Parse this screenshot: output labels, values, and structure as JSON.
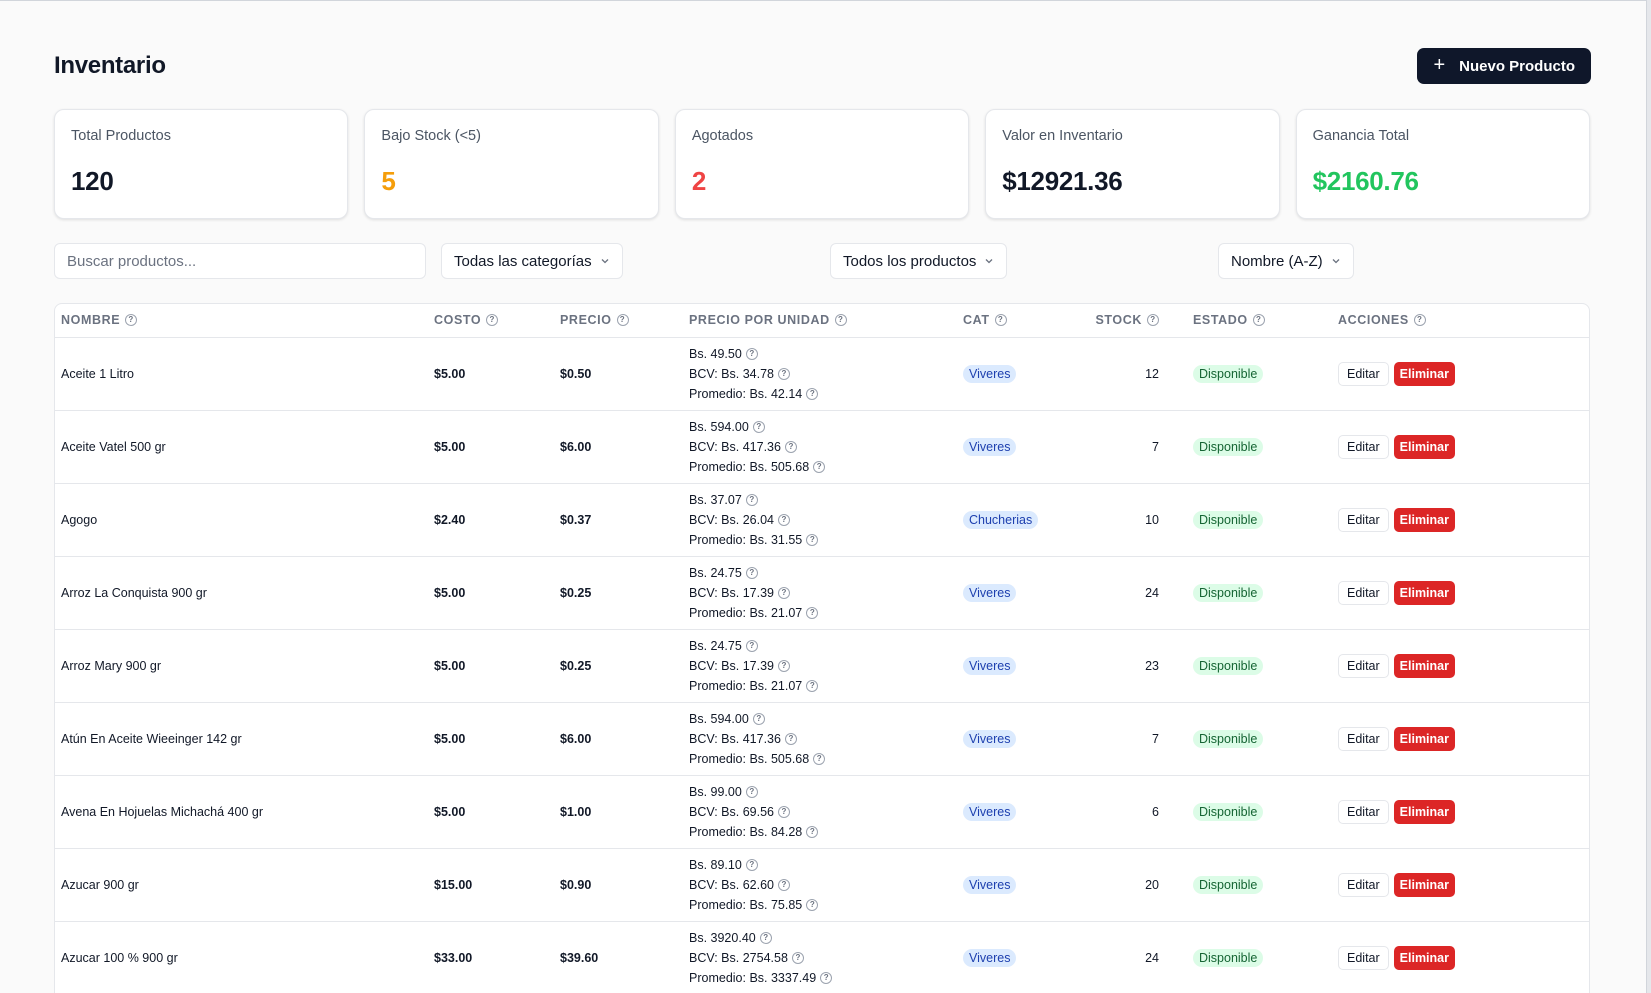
{
  "header": {
    "title": "Inventario",
    "new_button_label": "Nuevo Producto",
    "new_button_icon": "plus-icon"
  },
  "stats": [
    {
      "label": "Total Productos",
      "value": "120",
      "color": "#111827"
    },
    {
      "label": "Bajo Stock (<5)",
      "value": "5",
      "color": "#f59e0b"
    },
    {
      "label": "Agotados",
      "value": "2",
      "color": "#ef4444"
    },
    {
      "label": "Valor en Inventario",
      "value": "$12921.36",
      "color": "#111827"
    },
    {
      "label": "Ganancia Total",
      "value": "$2160.76",
      "color": "#22c55e"
    }
  ],
  "filters": {
    "search_placeholder": "Buscar productos...",
    "category_select": "Todas las categorías",
    "product_select": "Todos los productos",
    "sort_select": "Nombre (A-Z)"
  },
  "table": {
    "columns": [
      "NOMBRE",
      "COSTO",
      "PRECIO",
      "PRECIO POR UNIDAD",
      "CAT",
      "STOCK",
      "ESTADO",
      "ACCIONES"
    ],
    "edit_label": "Editar",
    "delete_label": "Eliminar",
    "rows": [
      {
        "nombre": "Aceite 1 Litro",
        "costo": "$5.00",
        "precio": "$0.50",
        "bs": "Bs. 49.50",
        "bcv": "BCV: Bs. 34.78",
        "promedio": "Promedio: Bs. 42.14",
        "cat": "Viveres",
        "stock": "12",
        "estado": "Disponible"
      },
      {
        "nombre": "Aceite Vatel 500 gr",
        "costo": "$5.00",
        "precio": "$6.00",
        "bs": "Bs. 594.00",
        "bcv": "BCV: Bs. 417.36",
        "promedio": "Promedio: Bs. 505.68",
        "cat": "Viveres",
        "stock": "7",
        "estado": "Disponible"
      },
      {
        "nombre": "Agogo",
        "costo": "$2.40",
        "precio": "$0.37",
        "bs": "Bs. 37.07",
        "bcv": "BCV: Bs. 26.04",
        "promedio": "Promedio: Bs. 31.55",
        "cat": "Chucherias",
        "stock": "10",
        "estado": "Disponible"
      },
      {
        "nombre": "Arroz La Conquista 900 gr",
        "costo": "$5.00",
        "precio": "$0.25",
        "bs": "Bs. 24.75",
        "bcv": "BCV: Bs. 17.39",
        "promedio": "Promedio: Bs. 21.07",
        "cat": "Viveres",
        "stock": "24",
        "estado": "Disponible"
      },
      {
        "nombre": "Arroz Mary 900 gr",
        "costo": "$5.00",
        "precio": "$0.25",
        "bs": "Bs. 24.75",
        "bcv": "BCV: Bs. 17.39",
        "promedio": "Promedio: Bs. 21.07",
        "cat": "Viveres",
        "stock": "23",
        "estado": "Disponible"
      },
      {
        "nombre": "Atún En Aceite Wieeinger 142 gr",
        "costo": "$5.00",
        "precio": "$6.00",
        "bs": "Bs. 594.00",
        "bcv": "BCV: Bs. 417.36",
        "promedio": "Promedio: Bs. 505.68",
        "cat": "Viveres",
        "stock": "7",
        "estado": "Disponible"
      },
      {
        "nombre": "Avena En Hojuelas Michachá 400 gr",
        "costo": "$5.00",
        "precio": "$1.00",
        "bs": "Bs. 99.00",
        "bcv": "BCV: Bs. 69.56",
        "promedio": "Promedio: Bs. 84.28",
        "cat": "Viveres",
        "stock": "6",
        "estado": "Disponible"
      },
      {
        "nombre": "Azucar 900 gr",
        "costo": "$15.00",
        "precio": "$0.90",
        "bs": "Bs. 89.10",
        "bcv": "BCV: Bs. 62.60",
        "promedio": "Promedio: Bs. 75.85",
        "cat": "Viveres",
        "stock": "20",
        "estado": "Disponible"
      },
      {
        "nombre": "Azucar 100 % 900 gr",
        "costo": "$33.00",
        "precio": "$39.60",
        "bs": "Bs. 3920.40",
        "bcv": "BCV: Bs. 2754.58",
        "promedio": "Promedio: Bs. 3337.49",
        "cat": "Viveres",
        "stock": "24",
        "estado": "Disponible"
      }
    ]
  }
}
